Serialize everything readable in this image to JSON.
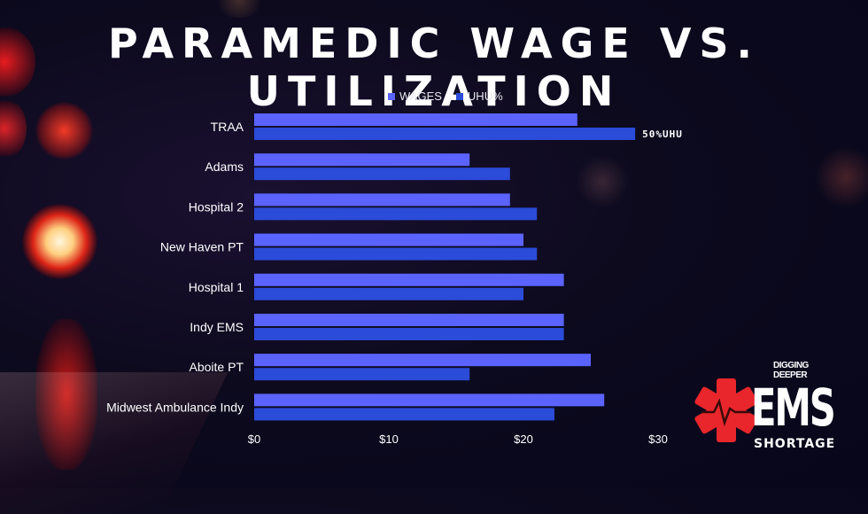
{
  "title": "PARAMEDIC WAGE VS. UTILIZATION",
  "legend": [
    {
      "label": "WAGES",
      "color": "#5b63ff"
    },
    {
      "label": "UHU%",
      "color": "#2b4bd9"
    }
  ],
  "chart_data": {
    "type": "bar",
    "orientation": "horizontal",
    "categories": [
      "TRAA",
      "Adams",
      "Hospital 2",
      "New Haven PT",
      "Hospital 1",
      "Indy EMS",
      "Aboite PT",
      "Midwest Ambulance Indy"
    ],
    "series": [
      {
        "name": "WAGES",
        "color": "#5b63ff",
        "values": [
          24,
          16,
          19,
          20,
          23,
          23,
          25,
          26
        ]
      },
      {
        "name": "UHU%",
        "color": "#2b4bd9",
        "values": [
          28.3,
          19,
          21,
          21,
          20,
          23,
          16,
          22.3
        ]
      }
    ],
    "xlim": [
      0,
      30
    ],
    "x_ticks": [
      "$0",
      "$10",
      "$20",
      "$30"
    ],
    "x_tick_values": [
      0,
      10,
      20,
      30
    ],
    "annotations": [
      {
        "category": "TRAA",
        "series": "UHU%",
        "text": "50%UHU"
      }
    ],
    "legend_position": "top"
  },
  "logo": {
    "line1": "DIGGING",
    "line2": "DEEPER",
    "main": "EMS",
    "sub": "SHORTAGE",
    "star_color": "#e8262b"
  }
}
